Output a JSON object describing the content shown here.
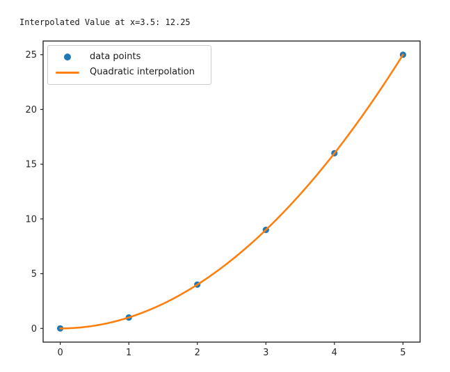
{
  "console": {
    "text": "Interpolated Value at x=3.5: 12.25"
  },
  "chart_data": {
    "type": "scatter",
    "title": "",
    "xlabel": "",
    "ylabel": "",
    "xlim": [
      -0.25,
      5.25
    ],
    "ylim": [
      -1.25,
      26.25
    ],
    "x_ticks": [
      0,
      1,
      2,
      3,
      4,
      5
    ],
    "y_ticks": [
      0,
      5,
      10,
      15,
      20,
      25
    ],
    "grid": false,
    "legend_position": "upper left",
    "series": [
      {
        "name": "data points",
        "type": "scatter",
        "color": "#1f77b4",
        "x": [
          0,
          1,
          2,
          3,
          4,
          5
        ],
        "y": [
          0,
          1,
          4,
          9,
          16,
          25
        ]
      },
      {
        "name": "Quadratic interpolation",
        "type": "line",
        "color": "#ff7f0e",
        "poly_coefficients": [
          0,
          0,
          1
        ],
        "x_range": [
          0,
          5
        ]
      }
    ],
    "interpolated_point": {
      "x": 3.5,
      "y": 12.25
    }
  },
  "colors": {
    "scatter": "#1f77b4",
    "line": "#ff7f0e",
    "spine": "#262626",
    "text": "#1a1a1a",
    "legend_border": "#cccccc"
  }
}
